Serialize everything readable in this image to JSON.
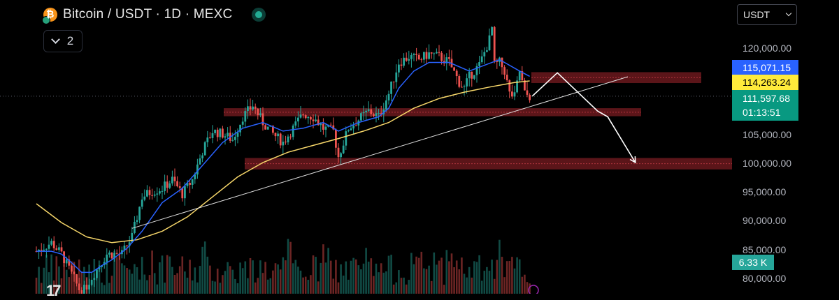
{
  "header": {
    "title": "Bitcoin / USDT · 1D · MEXC",
    "collapse_count": "2"
  },
  "currency_select": {
    "value": "USDT"
  },
  "price_axis": {
    "ticks": [
      "120,000.00",
      "105,000.00",
      "100,000.00",
      "95,000.00",
      "90,000.00",
      "85,000.00",
      "80,000.00"
    ],
    "labels": {
      "ema_fast": "115,071.15",
      "ema_slow": "114,263.24",
      "last_price": "111,597.68",
      "countdown": "01:13:51",
      "volume": "6.33 K"
    }
  },
  "colors": {
    "up": "#26a69a",
    "down": "#ef5350",
    "ema_fast": "#2962ff",
    "ema_slow": "#f7d76a",
    "zone": "#7a1c22",
    "background": "#000000"
  },
  "logo": "17",
  "chart_data": {
    "type": "candlestick",
    "symbol": "Bitcoin / USDT",
    "interval": "1D",
    "exchange": "MEXC",
    "y_ticks": [
      80000,
      85000,
      90000,
      95000,
      100000,
      105000,
      120000
    ],
    "ylim": [
      78200,
      128000
    ],
    "close_path": [
      [
        0,
        84500
      ],
      [
        6,
        86000
      ],
      [
        10,
        84000
      ],
      [
        14,
        80500
      ],
      [
        18,
        77000
      ],
      [
        22,
        80000
      ],
      [
        28,
        84000
      ],
      [
        34,
        84000
      ],
      [
        38,
        87000
      ],
      [
        42,
        94000
      ],
      [
        46,
        95000
      ],
      [
        50,
        95500
      ],
      [
        54,
        97000
      ],
      [
        58,
        94500
      ],
      [
        62,
        97000
      ],
      [
        66,
        102000
      ],
      [
        70,
        105500
      ],
      [
        74,
        105000
      ],
      [
        78,
        104000
      ],
      [
        82,
        108000
      ],
      [
        86,
        110000
      ],
      [
        90,
        107000
      ],
      [
        94,
        105000
      ],
      [
        98,
        103500
      ],
      [
        102,
        106000
      ],
      [
        106,
        108500
      ],
      [
        110,
        108000
      ],
      [
        114,
        106000
      ],
      [
        118,
        105500
      ],
      [
        120,
        101000
      ],
      [
        124,
        106000
      ],
      [
        128,
        107500
      ],
      [
        132,
        109000
      ],
      [
        136,
        108000
      ],
      [
        140,
        112000
      ],
      [
        144,
        117500
      ],
      [
        148,
        118500
      ],
      [
        152,
        118000
      ],
      [
        156,
        119000
      ],
      [
        160,
        118500
      ],
      [
        164,
        117500
      ],
      [
        168,
        114000
      ],
      [
        170,
        113000
      ],
      [
        172,
        115000
      ],
      [
        176,
        117000
      ],
      [
        180,
        121500
      ],
      [
        181,
        123500
      ],
      [
        182,
        117000
      ],
      [
        184,
        117500
      ],
      [
        186,
        116000
      ],
      [
        188,
        112000
      ],
      [
        190,
        111500
      ],
      [
        192,
        116000
      ],
      [
        194,
        112000
      ],
      [
        196,
        111600
      ]
    ],
    "ema_fast_values": [
      [
        0,
        84500
      ],
      [
        6,
        84500
      ],
      [
        10,
        84000
      ],
      [
        14,
        82500
      ],
      [
        18,
        80800
      ],
      [
        22,
        80800
      ],
      [
        26,
        82000
      ],
      [
        30,
        83000
      ],
      [
        36,
        85000
      ],
      [
        42,
        88000
      ],
      [
        50,
        93000
      ],
      [
        58,
        95500
      ],
      [
        66,
        99500
      ],
      [
        74,
        103500
      ],
      [
        82,
        106000
      ],
      [
        90,
        107000
      ],
      [
        98,
        105500
      ],
      [
        106,
        106000
      ],
      [
        114,
        107000
      ],
      [
        120,
        105500
      ],
      [
        128,
        107000
      ],
      [
        136,
        108000
      ],
      [
        140,
        109500
      ],
      [
        144,
        113000
      ],
      [
        150,
        116000
      ],
      [
        156,
        117500
      ],
      [
        164,
        117500
      ],
      [
        172,
        116000
      ],
      [
        178,
        117000
      ],
      [
        184,
        118000
      ],
      [
        192,
        116000
      ],
      [
        196,
        115071
      ]
    ],
    "ema_slow_values": [
      [
        0,
        92800
      ],
      [
        10,
        89500
      ],
      [
        20,
        87000
      ],
      [
        30,
        86000
      ],
      [
        40,
        86500
      ],
      [
        50,
        88000
      ],
      [
        60,
        90500
      ],
      [
        70,
        94000
      ],
      [
        80,
        97500
      ],
      [
        90,
        100000
      ],
      [
        100,
        101800
      ],
      [
        110,
        103000
      ],
      [
        120,
        104200
      ],
      [
        130,
        105500
      ],
      [
        140,
        107000
      ],
      [
        150,
        109500
      ],
      [
        160,
        111200
      ],
      [
        170,
        112300
      ],
      [
        180,
        113200
      ],
      [
        190,
        114000
      ],
      [
        196,
        114263
      ]
    ],
    "resistance_zones": [
      {
        "from": 113900,
        "to": 115800
      },
      {
        "from": 108100,
        "to": 109500
      },
      {
        "from": 98800,
        "to": 100800
      }
    ],
    "trendline": [
      [
        38,
        88500
      ],
      [
        235,
        115000
      ]
    ],
    "projection_path": [
      [
        197,
        111600
      ],
      [
        207,
        115700
      ],
      [
        223,
        109000
      ],
      [
        227,
        108000
      ],
      [
        238,
        100000
      ]
    ],
    "last_price": 111597.68,
    "ema_fast_last": 115071.15,
    "ema_slow_last": 114263.24,
    "last_volume": "6.33 K"
  }
}
